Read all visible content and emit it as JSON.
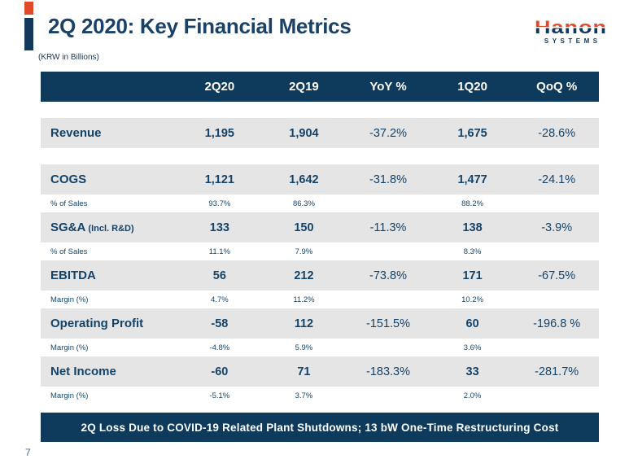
{
  "meta": {
    "page_number": "7"
  },
  "header": {
    "title": "2Q 2020: Key Financial Metrics",
    "subtitle": "(KRW in Billions)",
    "logo": {
      "brand": "Hanon",
      "sub": "SYSTEMS"
    }
  },
  "colors": {
    "navy": "#0E3A5C",
    "orange": "#E2492B",
    "row_gray": "#E5E5E5",
    "text_navy": "#14436A"
  },
  "table": {
    "column_keys": [
      "2q20",
      "2q19",
      "yoy",
      "1q20",
      "qoq"
    ],
    "columns": [
      "2Q20",
      "2Q19",
      "YoY %",
      "1Q20",
      "QoQ %"
    ],
    "rows": [
      {
        "type": "spacer"
      },
      {
        "type": "main",
        "label": "Revenue",
        "label_note": "",
        "values": [
          "1,195",
          "1,904",
          "-37.2%",
          "1,675",
          "-28.6%"
        ]
      },
      {
        "type": "spacer"
      },
      {
        "type": "main",
        "label": "COGS",
        "label_note": "",
        "values": [
          "1,121",
          "1,642",
          "-31.8%",
          "1,477",
          "-24.1%"
        ]
      },
      {
        "type": "sub",
        "label": "% of Sales",
        "values": [
          "93.7%",
          "86.3%",
          "",
          "88.2%",
          ""
        ]
      },
      {
        "type": "main",
        "label": "SG&A",
        "label_note": "(Incl. R&D)",
        "values": [
          "133",
          "150",
          "-11.3%",
          "138",
          "-3.9%"
        ]
      },
      {
        "type": "sub",
        "label": "% of Sales",
        "values": [
          "11.1%",
          "7.9%",
          "",
          "8.3%",
          ""
        ]
      },
      {
        "type": "main",
        "label": "EBITDA",
        "label_note": "",
        "values": [
          "56",
          "212",
          "-73.8%",
          "171",
          "-67.5%"
        ]
      },
      {
        "type": "sub",
        "label": "Margin (%)",
        "values": [
          "4.7%",
          "11.2%",
          "",
          "10.2%",
          ""
        ]
      },
      {
        "type": "main",
        "label": "Operating Profit",
        "label_note": "",
        "values": [
          "-58",
          "112",
          "-151.5%",
          "60",
          "-196.8 %"
        ]
      },
      {
        "type": "sub",
        "label": "Margin (%)",
        "values": [
          "-4.8%",
          "5.9%",
          "",
          "3.6%",
          ""
        ]
      },
      {
        "type": "main",
        "label": "Net Income",
        "label_note": "",
        "values": [
          "-60",
          "71",
          "-183.3%",
          "33",
          "-281.7%"
        ]
      },
      {
        "type": "sub",
        "label": "Margin (%)",
        "values": [
          "-5.1%",
          "3.7%",
          "",
          "2.0%",
          ""
        ]
      }
    ]
  },
  "banner": {
    "text": "2Q Loss Due to COVID-19 Related Plant Shutdowns; 13 bW One-Time Restructuring Cost"
  }
}
